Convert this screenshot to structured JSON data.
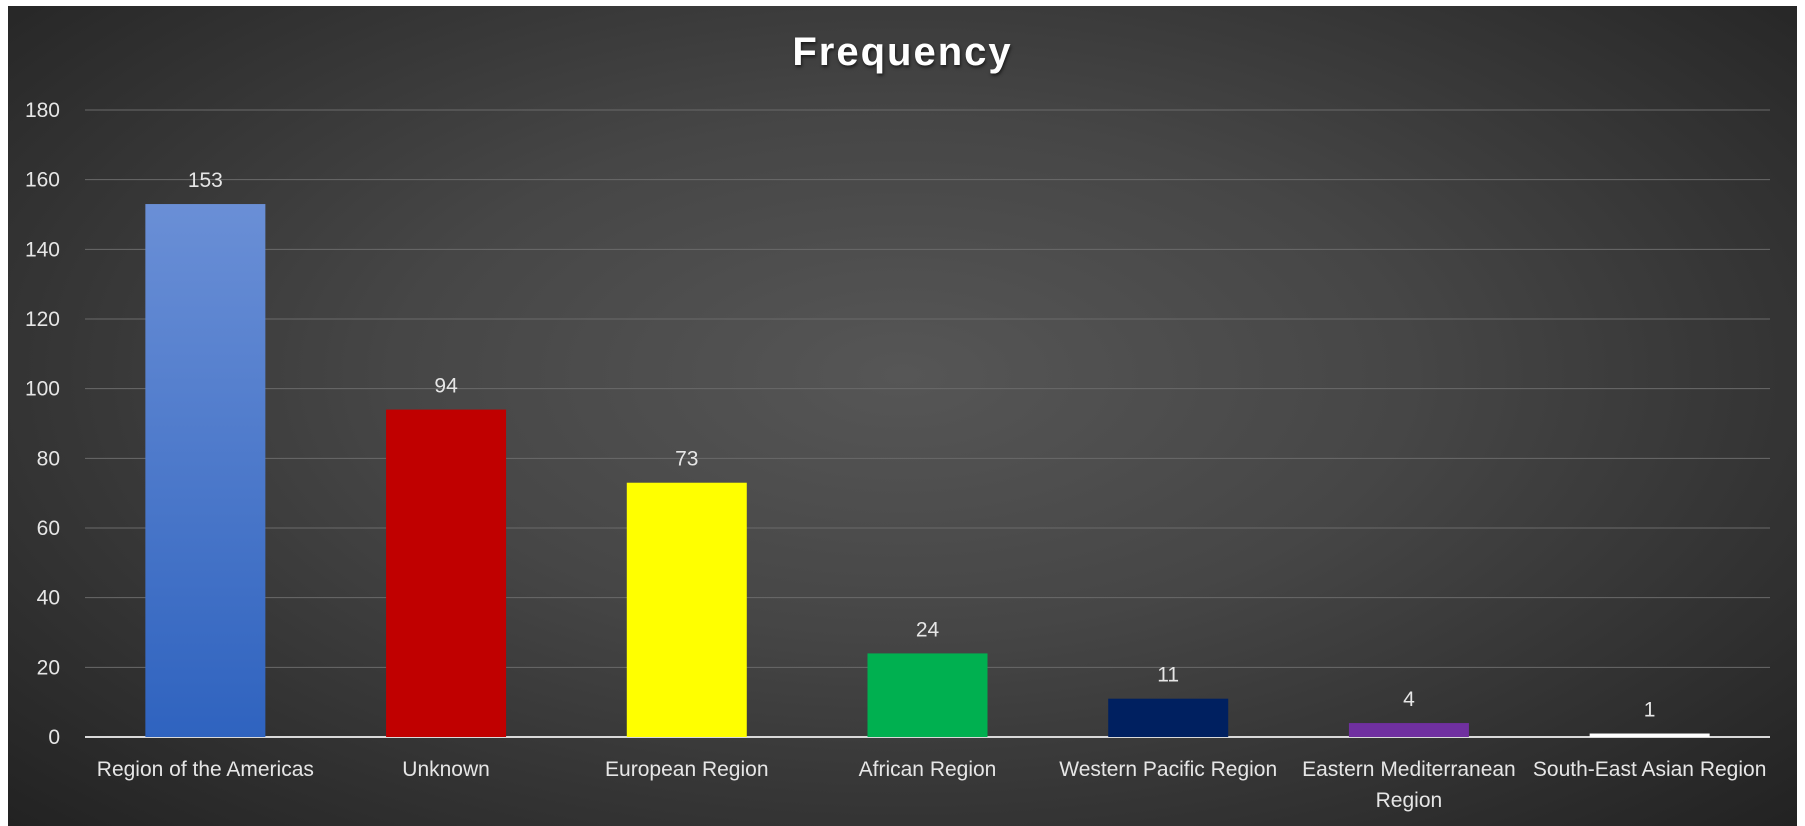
{
  "chart_data": {
    "type": "bar",
    "title": "Frequency",
    "categories": [
      [
        "Region of the Americas"
      ],
      [
        "Unknown"
      ],
      [
        "European Region"
      ],
      [
        "African Region"
      ],
      [
        "Western Pacific Region"
      ],
      [
        "Eastern Mediterranean",
        "Region"
      ],
      [
        "South-East Asian Region"
      ]
    ],
    "values": [
      153,
      94,
      73,
      24,
      11,
      4,
      1
    ],
    "data_labels": [
      "153",
      "94",
      "73",
      "24",
      "11",
      "4",
      "1"
    ],
    "bar_colors": [
      "#4a7fd4",
      "#c00000",
      "#ffff00",
      "#00b050",
      "#002060",
      "#7030a0",
      "#ffffff"
    ],
    "yticks": [
      "0",
      "20",
      "40",
      "60",
      "80",
      "100",
      "120",
      "140",
      "160",
      "180"
    ],
    "ylim": [
      0,
      180
    ],
    "xlabel": "",
    "ylabel": "",
    "grid": true,
    "legend": "none"
  }
}
